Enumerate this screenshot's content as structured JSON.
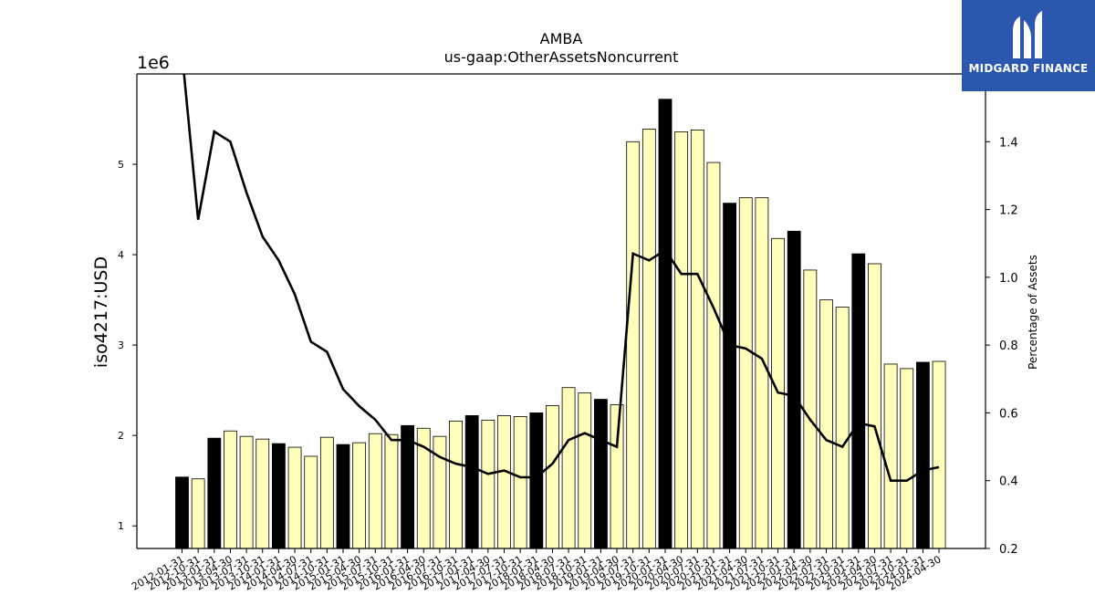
{
  "chart_data": {
    "type": "bar",
    "title": "AMBA",
    "subtitle": "us-gaap:OtherAssetsNoncurrent",
    "ylabel": "iso4217:USD",
    "y_offset_label": "1e6",
    "y2label": "Percentage of Assets",
    "ylim": [
      750000,
      6000000
    ],
    "y2lim": [
      0.2,
      1.6
    ],
    "yticks": [
      1,
      2,
      3,
      4,
      5
    ],
    "y2ticks": [
      "0.2",
      "0.4",
      "0.6",
      "0.8",
      "1.0",
      "1.2",
      "1.4"
    ],
    "grid": false,
    "categories": [
      "2012-01-31",
      "2012-10-31",
      "2013-01-31",
      "2013-04-30",
      "2013-07-31",
      "2013-10-31",
      "2014-01-31",
      "2014-04-30",
      "2014-07-31",
      "2014-10-31",
      "2015-01-31",
      "2015-04-30",
      "2015-07-31",
      "2015-10-31",
      "2016-01-31",
      "2016-04-30",
      "2016-07-31",
      "2016-10-31",
      "2017-01-31",
      "2017-04-30",
      "2017-07-31",
      "2017-10-31",
      "2018-01-31",
      "2018-04-30",
      "2018-07-31",
      "2018-10-31",
      "2019-01-31",
      "2019-04-30",
      "2019-07-31",
      "2019-10-31",
      "2020-01-31",
      "2020-04-30",
      "2020-07-31",
      "2020-10-31",
      "2021-01-31",
      "2021-04-30",
      "2021-07-31",
      "2021-10-31",
      "2022-01-31",
      "2022-04-30",
      "2022-07-31",
      "2022-10-31",
      "2023-01-31",
      "2023-04-30",
      "2023-07-31",
      "2023-10-31",
      "2024-01-31",
      "2024-04-30"
    ],
    "series": [
      {
        "type": "bar",
        "values": [
          1540000,
          1520000,
          1970000,
          2050000,
          1990000,
          1960000,
          1910000,
          1870000,
          1770000,
          1980000,
          1900000,
          1920000,
          2020000,
          2010000,
          2110000,
          2080000,
          1990000,
          2160000,
          2220000,
          2170000,
          2220000,
          2210000,
          2250000,
          2330000,
          2530000,
          2470000,
          2400000,
          2340000,
          5250000,
          5390000,
          5720000,
          5360000,
          5380000,
          5020000,
          4570000,
          4630000,
          4630000,
          4180000,
          4260000,
          3830000,
          3500000,
          3420000,
          4010000,
          3900000,
          2790000,
          2740000,
          2810000,
          2820000
        ],
        "fiscal_year_end": [
          true,
          false,
          true,
          false,
          false,
          false,
          true,
          false,
          false,
          false,
          true,
          false,
          false,
          false,
          true,
          false,
          false,
          false,
          true,
          false,
          false,
          false,
          true,
          false,
          false,
          false,
          true,
          false,
          false,
          false,
          true,
          false,
          false,
          false,
          true,
          false,
          false,
          false,
          true,
          false,
          false,
          false,
          true,
          false,
          false,
          false,
          true,
          false
        ],
        "colors": {
          "annual": "#000000",
          "quarterly": "#ffffbb"
        }
      },
      {
        "type": "line",
        "axis": "right",
        "color": "#000000",
        "values": [
          1.66,
          1.17,
          1.43,
          1.4,
          1.25,
          1.12,
          1.05,
          0.95,
          0.81,
          0.78,
          0.67,
          0.62,
          0.58,
          0.52,
          0.52,
          0.5,
          0.47,
          0.45,
          0.44,
          0.42,
          0.43,
          0.41,
          0.41,
          0.45,
          0.52,
          0.54,
          0.52,
          0.5,
          1.07,
          1.05,
          1.08,
          1.01,
          1.01,
          0.91,
          0.8,
          0.79,
          0.76,
          0.66,
          0.65,
          0.58,
          0.52,
          0.5,
          0.57,
          0.56,
          0.4,
          0.4,
          0.43,
          0.44
        ]
      }
    ]
  },
  "logo": {
    "text": "MIDGARD FINANCE"
  }
}
